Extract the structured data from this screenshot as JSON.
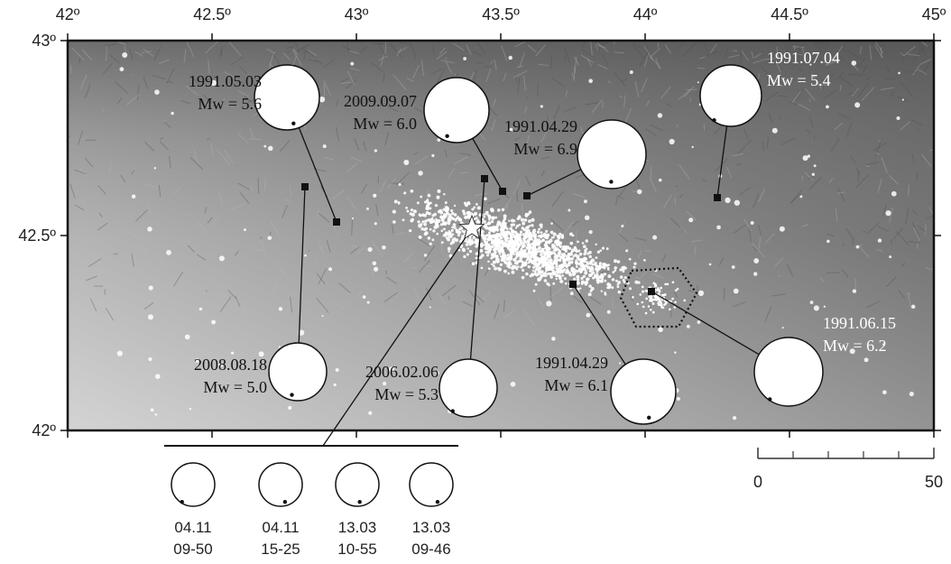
{
  "map": {
    "lon_ticks": [
      {
        "value": 42,
        "label": "42º"
      },
      {
        "value": 42.5,
        "label": "42.5º"
      },
      {
        "value": 43,
        "label": "43º"
      },
      {
        "value": 43.5,
        "label": "43.5º"
      },
      {
        "value": 44,
        "label": "44º"
      },
      {
        "value": 44.5,
        "label": "44.5º"
      },
      {
        "value": 45,
        "label": "45º"
      }
    ],
    "lat_ticks": [
      {
        "value": 42,
        "label": "42º"
      },
      {
        "value": 42.5,
        "label": "42.5º"
      },
      {
        "value": 43,
        "label": "43º"
      }
    ],
    "events": [
      {
        "date": "1991.05.03",
        "magnitude": "Mw = 5.6"
      },
      {
        "date": "2009.09.07",
        "magnitude": "Mw = 6.0"
      },
      {
        "date": "1991.04.29",
        "magnitude": "Mw = 6.9"
      },
      {
        "date": "1991.07.04",
        "magnitude": "Mw = 5.4"
      },
      {
        "date": "2008.08.18",
        "magnitude": "Mw = 5.0"
      },
      {
        "date": "2006.02.06",
        "magnitude": "Mw = 5.3"
      },
      {
        "date": "1991.04.29",
        "magnitude": "Mw = 6.1"
      },
      {
        "date": "1991.06.15",
        "magnitude": "Mw = 6.2"
      }
    ],
    "sequence": [
      {
        "date": "04.11",
        "time": "09-50"
      },
      {
        "date": "04.11",
        "time": "15-25"
      },
      {
        "date": "13.03",
        "time": "10-55"
      },
      {
        "date": "13.03",
        "time": "09-46"
      }
    ],
    "scale_bar": {
      "range": [
        0,
        50
      ]
    }
  }
}
